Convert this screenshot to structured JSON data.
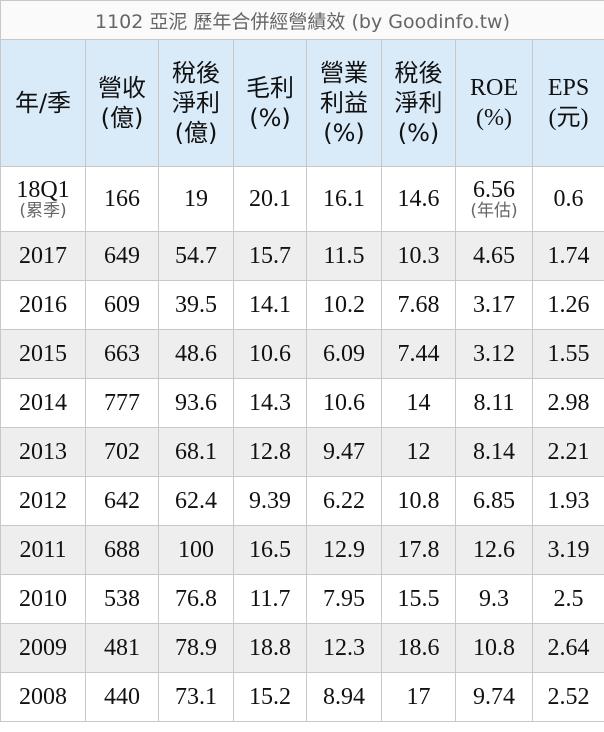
{
  "title": "1102 亞泥 歷年合併經營績效 (by Goodinfo.tw)",
  "table": {
    "header": [
      [
        "年/季"
      ],
      [
        "營收",
        "(億)"
      ],
      [
        "稅後",
        "淨利",
        "(億)"
      ],
      [
        "毛利",
        "(%)"
      ],
      [
        "營業",
        "利益",
        "(%)"
      ],
      [
        "稅後",
        "淨利",
        "(%)"
      ],
      [
        "ROE",
        "(%)"
      ],
      [
        "EPS",
        "(元)"
      ]
    ],
    "rows": [
      [
        {
          "text": "18Q1",
          "note": "(累季)"
        },
        "166",
        "19",
        "20.1",
        "16.1",
        "14.6",
        {
          "text": "6.56",
          "note": "(年估)"
        },
        "0.6"
      ],
      [
        "2017",
        "649",
        "54.7",
        "15.7",
        "11.5",
        "10.3",
        "4.65",
        "1.74"
      ],
      [
        "2016",
        "609",
        "39.5",
        "14.1",
        "10.2",
        "7.68",
        "3.17",
        "1.26"
      ],
      [
        "2015",
        "663",
        "48.6",
        "10.6",
        "6.09",
        "7.44",
        "3.12",
        "1.55"
      ],
      [
        "2014",
        "777",
        "93.6",
        "14.3",
        "10.6",
        "14",
        "8.11",
        "2.98"
      ],
      [
        "2013",
        "702",
        "68.1",
        "12.8",
        "9.47",
        "12",
        "8.14",
        "2.21"
      ],
      [
        "2012",
        "642",
        "62.4",
        "9.39",
        "6.22",
        "10.8",
        "6.85",
        "1.93"
      ],
      [
        "2011",
        "688",
        "100",
        "16.5",
        "12.9",
        "17.8",
        "12.6",
        "3.19"
      ],
      [
        "2010",
        "538",
        "76.8",
        "11.7",
        "7.95",
        "15.5",
        "9.3",
        "2.5"
      ],
      [
        "2009",
        "481",
        "78.9",
        "18.8",
        "12.3",
        "18.6",
        "10.8",
        "2.64"
      ],
      [
        "2008",
        "440",
        "73.1",
        "15.2",
        "8.94",
        "17",
        "9.74",
        "2.52"
      ]
    ]
  }
}
